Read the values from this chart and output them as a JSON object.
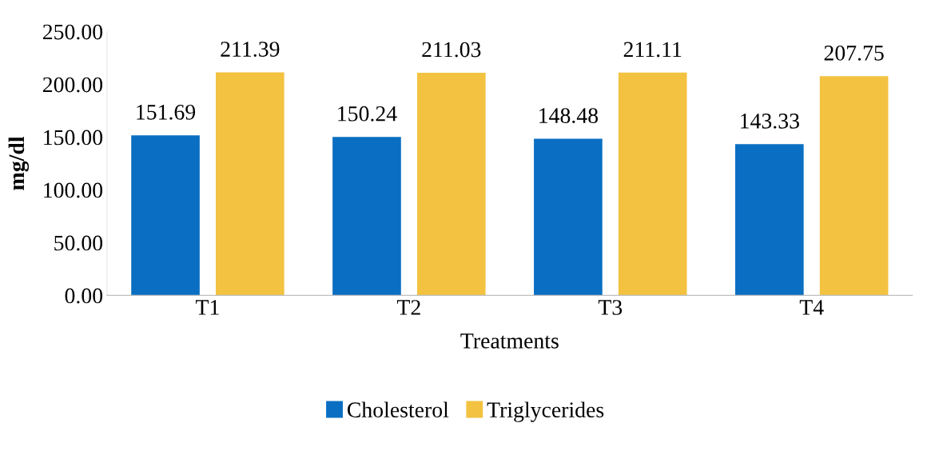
{
  "chart_data": {
    "type": "bar",
    "categories": [
      "T1",
      "T2",
      "T3",
      "T4"
    ],
    "series": [
      {
        "name": "Cholesterol",
        "color": "#0a6fc2",
        "values": [
          151.69,
          150.24,
          148.48,
          143.33
        ]
      },
      {
        "name": "Triglycerides",
        "color": "#f2c240",
        "values": [
          211.39,
          211.03,
          211.11,
          207.75
        ]
      }
    ],
    "xlabel": "Treatments",
    "ylabel": "mg/dl",
    "ylim": [
      0,
      250
    ],
    "yticks": [
      {
        "value": 0,
        "label": "0.00"
      },
      {
        "value": 50,
        "label": "50.00"
      },
      {
        "value": 100,
        "label": "100.00"
      },
      {
        "value": 150,
        "label": "150.00"
      },
      {
        "value": 200,
        "label": "200.00"
      },
      {
        "value": 250,
        "label": "250.00"
      }
    ],
    "data_labels": true,
    "grid": false,
    "legend": "bottom"
  }
}
